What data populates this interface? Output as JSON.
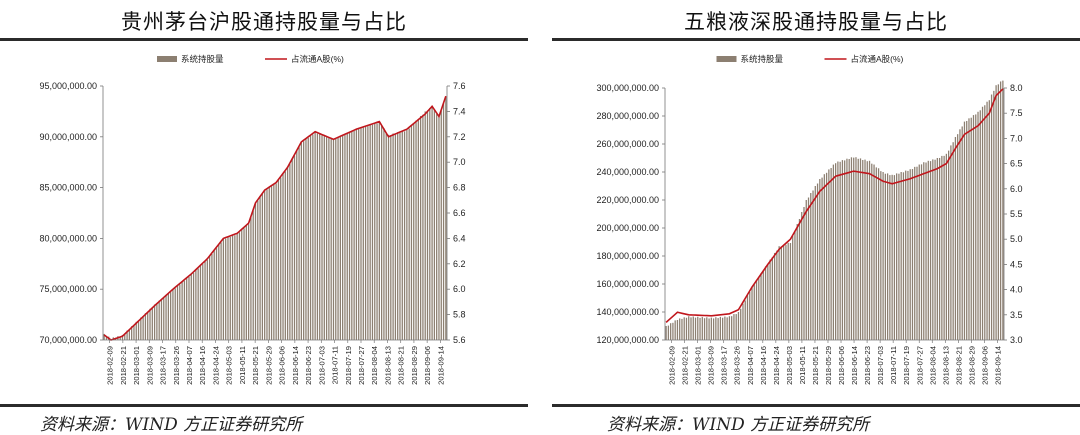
{
  "chart_data": [
    {
      "type": "bar+line",
      "title": "贵州茅台沪股通持股量与占比",
      "source": "资料来源：WIND 方正证券研究所",
      "legend": {
        "placement": "top-center",
        "bar_label": "系统持股量",
        "line_label": "占流通A股(%)"
      },
      "bar_color": "#8c7f71",
      "line_color": "#c0161c",
      "x_tick_labels": [
        "2018-02-09",
        "2018-02-21",
        "2018-03-01",
        "2018-03-09",
        "2018-03-17",
        "2018-03-26",
        "2018-04-07",
        "2018-04-16",
        "2018-04-24",
        "2018-05-03",
        "2018-05-11",
        "2018-05-21",
        "2018-05-29",
        "2018-06-06",
        "2018-06-14",
        "2018-06-23",
        "2018-07-03",
        "2018-07-11",
        "2018-07-19",
        "2018-07-27",
        "2018-08-04",
        "2018-08-13",
        "2018-08-21",
        "2018-08-29",
        "2018-09-06",
        "2018-09-14"
      ],
      "y_left": {
        "min": 70000000,
        "max": 95000000,
        "step": 5000000,
        "tick_labels": [
          "70,000,000.00",
          "75,000,000.00",
          "80,000,000.00",
          "85,000,000.00",
          "90,000,000.00",
          "95,000,000.00"
        ]
      },
      "y_right": {
        "min": 5.6,
        "max": 7.6,
        "step": 0.2,
        "tick_labels": [
          "5.6",
          "5.8",
          "6.0",
          "6.2",
          "6.4",
          "6.6",
          "6.8",
          "7.0",
          "7.2",
          "7.4",
          "7.6"
        ]
      },
      "n_bars": 150,
      "bar_anchors": [
        [
          0,
          70600000
        ],
        [
          3,
          70200000
        ],
        [
          8,
          70500000
        ],
        [
          15,
          72000000
        ],
        [
          22,
          73500000
        ],
        [
          30,
          75000000
        ],
        [
          38,
          76500000
        ],
        [
          45,
          78000000
        ],
        [
          52,
          80000000
        ],
        [
          58,
          80500000
        ],
        [
          63,
          81500000
        ],
        [
          66,
          83500000
        ],
        [
          70,
          84800000
        ],
        [
          75,
          85500000
        ],
        [
          80,
          87000000
        ],
        [
          86,
          89500000
        ],
        [
          92,
          90500000
        ],
        [
          100,
          89800000
        ],
        [
          110,
          90800000
        ],
        [
          120,
          91500000
        ],
        [
          124,
          90200000
        ],
        [
          132,
          90700000
        ],
        [
          140,
          92500000
        ],
        [
          143,
          93000000
        ],
        [
          146,
          92000000
        ],
        [
          149,
          94000000
        ]
      ],
      "line_anchors": [
        [
          0,
          5.64
        ],
        [
          3,
          5.6
        ],
        [
          8,
          5.63
        ],
        [
          15,
          5.75
        ],
        [
          22,
          5.87
        ],
        [
          30,
          6.0
        ],
        [
          38,
          6.12
        ],
        [
          45,
          6.24
        ],
        [
          52,
          6.4
        ],
        [
          58,
          6.44
        ],
        [
          63,
          6.52
        ],
        [
          66,
          6.68
        ],
        [
          70,
          6.78
        ],
        [
          75,
          6.84
        ],
        [
          80,
          6.96
        ],
        [
          86,
          7.16
        ],
        [
          92,
          7.24
        ],
        [
          100,
          7.18
        ],
        [
          110,
          7.26
        ],
        [
          120,
          7.32
        ],
        [
          124,
          7.2
        ],
        [
          132,
          7.26
        ],
        [
          140,
          7.38
        ],
        [
          143,
          7.44
        ],
        [
          146,
          7.36
        ],
        [
          149,
          7.52
        ]
      ]
    },
    {
      "type": "bar+line",
      "title": "五粮液深股通持股量与占比",
      "source": "资料来源：WIND 方正证券研究所",
      "legend": {
        "placement": "top-center",
        "bar_label": "系统持股量",
        "line_label": "占流通A股(%)"
      },
      "bar_color": "#8c7f71",
      "line_color": "#c0161c",
      "x_tick_labels": [
        "2018-02-09",
        "2018-02-21",
        "2018-03-01",
        "2018-03-09",
        "2018-03-17",
        "2018-03-26",
        "2018-04-07",
        "2018-04-16",
        "2018-04-24",
        "2018-05-03",
        "2018-05-11",
        "2018-05-21",
        "2018-05-29",
        "2018-06-06",
        "2018-06-14",
        "2018-06-23",
        "2018-07-03",
        "2018-07-11",
        "2018-07-19",
        "2018-07-27",
        "2018-08-04",
        "2018-08-13",
        "2018-08-21",
        "2018-08-29",
        "2018-09-06",
        "2018-09-14"
      ],
      "y_left": {
        "min": 120000000,
        "max": 300000000,
        "step": 20000000,
        "tick_labels": [
          "120,000,000.00",
          "140,000,000.00",
          "160,000,000.00",
          "180,000,000.00",
          "200,000,000.00",
          "220,000,000.00",
          "240,000,000.00",
          "260,000,000.00",
          "280,000,000.00",
          "300,000,000.00"
        ]
      },
      "y_right": {
        "min": 3.0,
        "max": 8.0,
        "step": 0.5,
        "tick_labels": [
          "3.0",
          "3.5",
          "4.0",
          "4.5",
          "5.0",
          "5.5",
          "6.0",
          "6.5",
          "7.0",
          "7.5",
          "8.0"
        ]
      },
      "n_bars": 150,
      "bar_anchors": [
        [
          0,
          130000000
        ],
        [
          5,
          135000000
        ],
        [
          10,
          137000000
        ],
        [
          20,
          136000000
        ],
        [
          28,
          137000000
        ],
        [
          32,
          140000000
        ],
        [
          38,
          158000000
        ],
        [
          45,
          175000000
        ],
        [
          50,
          187000000
        ],
        [
          55,
          190000000
        ],
        [
          62,
          220000000
        ],
        [
          68,
          235000000
        ],
        [
          75,
          247000000
        ],
        [
          83,
          251000000
        ],
        [
          90,
          248000000
        ],
        [
          96,
          240000000
        ],
        [
          100,
          238000000
        ],
        [
          108,
          242000000
        ],
        [
          114,
          247000000
        ],
        [
          120,
          250000000
        ],
        [
          124,
          253000000
        ],
        [
          128,
          265000000
        ],
        [
          132,
          276000000
        ],
        [
          138,
          283000000
        ],
        [
          143,
          292000000
        ],
        [
          146,
          302000000
        ],
        [
          149,
          306000000
        ]
      ],
      "line_anchors": [
        [
          0,
          3.35
        ],
        [
          5,
          3.55
        ],
        [
          10,
          3.5
        ],
        [
          20,
          3.48
        ],
        [
          28,
          3.52
        ],
        [
          32,
          3.6
        ],
        [
          38,
          4.05
        ],
        [
          45,
          4.5
        ],
        [
          50,
          4.8
        ],
        [
          55,
          5.0
        ],
        [
          62,
          5.55
        ],
        [
          68,
          5.95
        ],
        [
          75,
          6.25
        ],
        [
          83,
          6.35
        ],
        [
          90,
          6.3
        ],
        [
          96,
          6.15
        ],
        [
          100,
          6.1
        ],
        [
          108,
          6.2
        ],
        [
          114,
          6.3
        ],
        [
          120,
          6.4
        ],
        [
          124,
          6.5
        ],
        [
          128,
          6.8
        ],
        [
          132,
          7.08
        ],
        [
          138,
          7.25
        ],
        [
          143,
          7.5
        ],
        [
          146,
          7.85
        ],
        [
          149,
          7.98
        ]
      ]
    }
  ]
}
